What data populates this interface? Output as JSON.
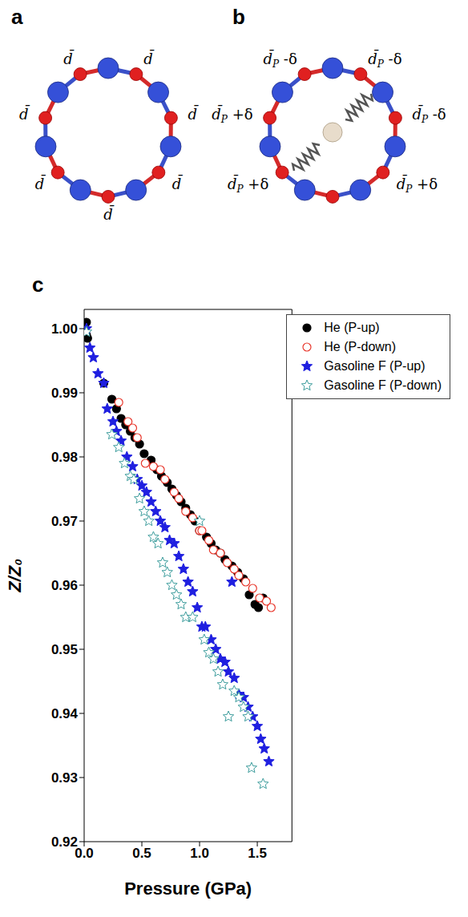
{
  "panels": [
    {
      "letter": "a",
      "bond_labels": [
        {
          "text": "d̄"
        },
        {
          "text": "d̄"
        },
        {
          "text": "d̄"
        },
        {
          "text": "d̄"
        },
        {
          "text": "d̄"
        },
        {
          "text": "d̄"
        },
        {
          "text": "d̄"
        }
      ]
    },
    {
      "letter": "b",
      "bond_labels": [
        {
          "text": "d̄",
          "subscript": "P",
          "suffix": " -δ"
        },
        {
          "text": "d̄",
          "subscript": "P",
          "suffix": " -δ"
        },
        {
          "text": "d̄",
          "subscript": "P",
          "suffix": " +δ"
        },
        {
          "text": "d̄",
          "subscript": "P",
          "suffix": " -δ"
        },
        {
          "text": "d̄",
          "subscript": "P",
          "suffix": " +δ"
        },
        {
          "text": "d̄",
          "subscript": "P",
          "suffix": " +δ"
        }
      ]
    },
    {
      "letter": "c"
    }
  ],
  "chart_data": {
    "type": "scatter",
    "x_label": "Pressure (GPa)",
    "y_label": "Z/Z₀",
    "xlim": [
      0,
      1.8
    ],
    "ylim": [
      0.92,
      1.003
    ],
    "xticks": [
      {
        "value": 0,
        "label": "0.0"
      },
      0.5,
      {
        "value": 1,
        "label": "1.0"
      },
      1.5
    ],
    "yticks": [
      0.92,
      0.93,
      0.94,
      0.95,
      0.96,
      0.97,
      0.98,
      0.99,
      {
        "value": 1,
        "label": "1.00"
      }
    ],
    "grid": false,
    "legend": "upper right",
    "series": [
      {
        "name": "He (P-up)",
        "color": "#000000",
        "marker": "circle",
        "x": [
          0.02,
          0.02,
          0.03,
          0.17,
          0.24,
          0.28,
          0.32,
          0.36,
          0.4,
          0.44,
          0.48,
          0.52,
          0.58,
          0.63,
          0.67,
          0.72,
          0.76,
          0.8,
          0.84,
          0.88,
          0.92,
          0.96,
          1.0,
          1.06,
          1.1,
          1.14,
          1.18,
          1.22,
          1.28,
          1.33,
          1.38,
          1.43,
          1.48,
          1.51,
          1.55
        ],
        "values": [
          1.001,
          0.999,
          0.9985,
          0.9915,
          0.989,
          0.9875,
          0.986,
          0.985,
          0.984,
          0.983,
          0.982,
          0.9805,
          0.9795,
          0.978,
          0.977,
          0.976,
          0.975,
          0.974,
          0.973,
          0.972,
          0.971,
          0.97,
          0.9685,
          0.9675,
          0.9665,
          0.9655,
          0.965,
          0.964,
          0.963,
          0.962,
          0.961,
          0.9585,
          0.957,
          0.9565,
          0.958
        ]
      },
      {
        "name": "He (P-down)",
        "color": "#e8372c",
        "marker": "open_circle",
        "x": [
          0.3,
          0.38,
          0.42,
          0.46,
          0.53,
          0.6,
          0.66,
          0.7,
          0.78,
          0.82,
          0.88,
          0.94,
          1.0,
          1.02,
          1.08,
          1.12,
          1.18,
          1.24,
          1.3,
          1.34,
          1.4,
          1.46,
          1.52,
          1.58,
          1.62
        ],
        "values": [
          0.9885,
          0.9855,
          0.9845,
          0.983,
          0.979,
          0.9785,
          0.978,
          0.9765,
          0.9745,
          0.9735,
          0.9715,
          0.9705,
          0.9685,
          0.9685,
          0.967,
          0.9655,
          0.965,
          0.9635,
          0.9625,
          0.9615,
          0.9605,
          0.9595,
          0.958,
          0.9575,
          0.9565
        ]
      },
      {
        "name": "Gasoline F (P-up)",
        "color": "#1f1fe0",
        "marker": "star",
        "x": [
          0.02,
          0.05,
          0.08,
          0.12,
          0.17,
          0.2,
          0.25,
          0.28,
          0.32,
          0.37,
          0.42,
          0.46,
          0.5,
          0.54,
          0.58,
          0.62,
          0.66,
          0.7,
          0.74,
          0.78,
          0.82,
          0.86,
          0.9,
          0.94,
          0.98,
          1.02,
          1.05,
          1.1,
          1.14,
          1.18,
          1.22,
          1.25,
          1.28,
          1.3,
          1.34,
          1.38,
          1.42,
          1.46,
          1.5,
          1.53,
          1.56,
          1.6
        ],
        "values": [
          1.0,
          0.997,
          0.9955,
          0.993,
          0.9915,
          0.9875,
          0.9855,
          0.984,
          0.9825,
          0.98,
          0.9785,
          0.9765,
          0.9755,
          0.9745,
          0.973,
          0.9715,
          0.97,
          0.969,
          0.967,
          0.9665,
          0.9645,
          0.9625,
          0.9605,
          0.959,
          0.9565,
          0.9535,
          0.9535,
          0.9515,
          0.95,
          0.9485,
          0.948,
          0.9465,
          0.9605,
          0.9455,
          0.943,
          0.9425,
          0.941,
          0.9395,
          0.938,
          0.936,
          0.9345,
          0.9325
        ]
      },
      {
        "name": "Gasoline F (P-down)",
        "color": "#3f9e9e",
        "marker": "open_star",
        "x": [
          0.02,
          0.24,
          0.3,
          0.35,
          0.4,
          0.43,
          0.48,
          0.52,
          0.56,
          0.6,
          0.64,
          0.68,
          0.72,
          0.76,
          0.8,
          0.84,
          0.88,
          0.94,
          1.0,
          1.04,
          1.08,
          1.12,
          1.16,
          1.2,
          1.25,
          1.3,
          1.34,
          1.38,
          1.42,
          1.45,
          1.55
        ],
        "values": [
          0.9995,
          0.9835,
          0.9815,
          0.979,
          0.977,
          0.9765,
          0.9735,
          0.9715,
          0.97,
          0.9675,
          0.9665,
          0.9635,
          0.962,
          0.96,
          0.9585,
          0.957,
          0.955,
          0.955,
          0.97,
          0.9515,
          0.9495,
          0.9485,
          0.9465,
          0.9445,
          0.9395,
          0.9435,
          0.9425,
          0.941,
          0.9395,
          0.9315,
          0.929
        ]
      }
    ]
  }
}
